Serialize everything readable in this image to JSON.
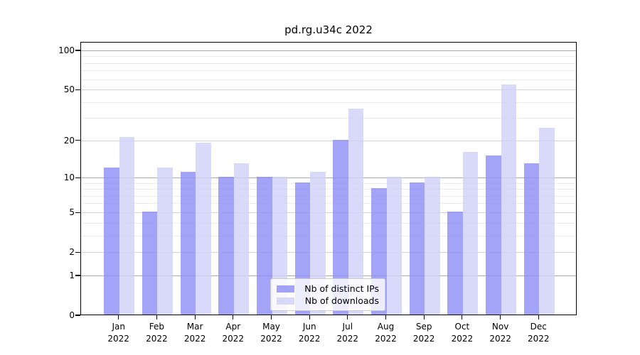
{
  "title": "pd.rg.u34c 2022",
  "legend": {
    "items": [
      {
        "label": "Nb of distinct IPs",
        "swatch": "ips"
      },
      {
        "label": "Nb of downloads",
        "swatch": "downloads"
      }
    ]
  },
  "y_axis": {
    "tick_labels": [
      "100",
      "50",
      "20",
      "10",
      "5",
      "2",
      "1",
      "0"
    ],
    "tick_values": [
      100,
      50,
      20,
      10,
      5,
      2,
      1,
      0
    ],
    "gridlines": {
      "major_values": [
        1,
        10,
        100
      ],
      "mid_values": [
        2,
        5,
        20,
        50
      ],
      "minor_values": [
        3,
        4,
        6,
        7,
        8,
        9,
        30,
        40,
        60,
        70,
        80,
        90
      ]
    }
  },
  "x_axis": {
    "months": [
      "Jan",
      "Feb",
      "Mar",
      "Apr",
      "May",
      "Jun",
      "Jul",
      "Aug",
      "Sep",
      "Oct",
      "Nov",
      "Dec"
    ],
    "year": "2022"
  },
  "colors": {
    "ips_bar": "#8c8cf5",
    "downloads_bar": "#cfcff7",
    "bar_alpha": 0.8,
    "grid_major": "rgba(0,0,0,0.33)",
    "grid_mid": "rgba(0,0,0,0.17)",
    "grid_minor": "rgba(0,0,0,0.075)",
    "spine": "#000000",
    "background": "#ffffff"
  },
  "chart_data": {
    "type": "bar",
    "title": "pd.rg.u34c 2022",
    "categories": [
      "Jan 2022",
      "Feb 2022",
      "Mar 2022",
      "Apr 2022",
      "May 2022",
      "Jun 2022",
      "Jul 2022",
      "Aug 2022",
      "Sep 2022",
      "Oct 2022",
      "Nov 2022",
      "Dec 2022"
    ],
    "series": [
      {
        "name": "Nb of distinct IPs",
        "color": "#8c8cf5",
        "values": [
          12,
          5,
          11,
          10,
          10,
          9,
          20,
          8,
          9,
          5,
          15,
          13
        ]
      },
      {
        "name": "Nb of downloads",
        "color": "#cfcff7",
        "values": [
          21,
          12,
          19,
          13,
          10,
          11,
          35,
          10,
          10,
          16,
          54,
          25
        ]
      }
    ],
    "xlabel": "",
    "ylabel": "",
    "yscale": "log1p",
    "ylim": [
      0,
      116
    ],
    "yticks": [
      0,
      1,
      2,
      5,
      10,
      20,
      50,
      100
    ],
    "grid": true,
    "legend_position": "lower center"
  }
}
